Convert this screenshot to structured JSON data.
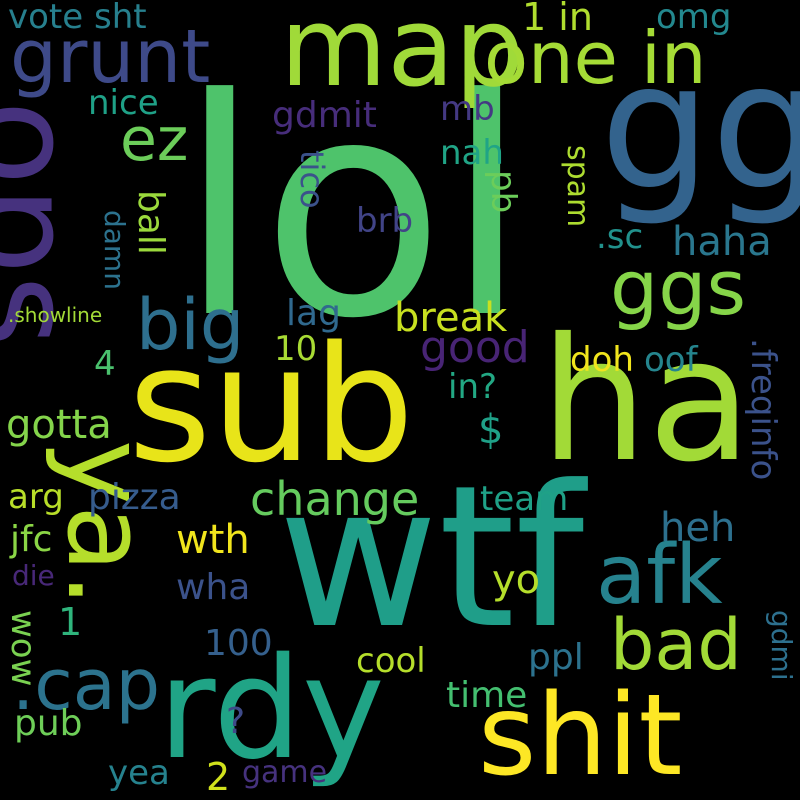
{
  "words": [
    {
      "text": "lol",
      "color": "#4ec36b"
    },
    {
      "text": "sub",
      "color": "#e8e419"
    },
    {
      "text": "ha",
      "color": "#a2da37"
    },
    {
      "text": "wtf",
      "color": "#1f9e89"
    },
    {
      "text": "gg",
      "color": "#33638d"
    },
    {
      "text": "rdy",
      "color": "#20a486"
    },
    {
      "text": "shit",
      "color": "#fde725"
    },
    {
      "text": "ops",
      "color": "#46327e"
    },
    {
      "text": "map",
      "color": "#a0da39"
    },
    {
      "text": "ya.",
      "color": "#b5de2b"
    },
    {
      "text": "grunt",
      "color": "#3e4a89"
    },
    {
      "text": "one in",
      "color": "#a5db36"
    },
    {
      "text": "ggs",
      "color": "#86d549"
    },
    {
      "text": "afk",
      "color": "#26828e"
    },
    {
      "text": "bad",
      "color": "#a2da37"
    },
    {
      "text": ".cap",
      "color": "#2c738e"
    },
    {
      "text": "big",
      "color": "#2e6f8e"
    },
    {
      "text": "ez",
      "color": "#6ccd5a"
    },
    {
      "text": "change",
      "color": "#65cb5e"
    },
    {
      "text": "good",
      "color": "#482475"
    },
    {
      "text": "break",
      "color": "#c8e020"
    },
    {
      "text": ".freqinfo",
      "color": "#3b528b"
    },
    {
      "text": "gotta",
      "color": "#84d44b"
    },
    {
      "text": "pizza",
      "color": "#365c8d"
    },
    {
      "text": "wth",
      "color": "#f1e51d"
    },
    {
      "text": "haha",
      "color": "#2a778e"
    },
    {
      "text": "yo",
      "color": "#b5de2b"
    },
    {
      "text": "heh",
      "color": "#2d708e"
    },
    {
      "text": "vote sht",
      "color": "#27808e"
    },
    {
      "text": "nice",
      "color": "#1fa187"
    },
    {
      "text": "gdmit",
      "color": "#472d7b"
    },
    {
      "text": "mb",
      "color": "#443983"
    },
    {
      "text": "nah",
      "color": "#20a486"
    },
    {
      "text": "1 in",
      "color": "#b0dd2f"
    },
    {
      "text": "omg",
      "color": "#23888e"
    },
    {
      "text": "pb",
      "color": "#6ccd5a"
    },
    {
      "text": "tico",
      "color": "#3b528b"
    },
    {
      "text": "spam",
      "color": "#addc30"
    },
    {
      "text": ".sc",
      "color": "#21918c"
    },
    {
      "text": "brb",
      "color": "#414487"
    },
    {
      "text": "damn",
      "color": "#2c728e"
    },
    {
      "text": "ball",
      "color": "#9bd93c"
    },
    {
      "text": "lag",
      "color": "#30698e"
    },
    {
      "text": "10",
      "color": "#a8db34"
    },
    {
      "text": "4",
      "color": "#4ac16d"
    },
    {
      "text": "doh",
      "color": "#f1e51d"
    },
    {
      "text": "oof",
      "color": "#25858e"
    },
    {
      "text": "in?",
      "color": "#22a884"
    },
    {
      "text": "$",
      "color": "#1fa188"
    },
    {
      "text": "arg",
      "color": "#b8de29"
    },
    {
      "text": "team",
      "color": "#1fa187"
    },
    {
      "text": "jfc",
      "color": "#8bd646"
    },
    {
      "text": "die",
      "color": "#482878"
    },
    {
      "text": "wow",
      "color": "#7ad151"
    },
    {
      "text": "wha",
      "color": "#3b528b"
    },
    {
      "text": "1",
      "color": "#2fb47c"
    },
    {
      "text": "100",
      "color": "#35608d"
    },
    {
      "text": "cool",
      "color": "#b5de2b"
    },
    {
      "text": "ppl",
      "color": "#2c728e"
    },
    {
      "text": "gdmi",
      "color": "#2d708e"
    },
    {
      "text": "time",
      "color": "#44bf70"
    },
    {
      "text": "?",
      "color": "#3e4a89"
    },
    {
      "text": "pub",
      "color": "#6ece58"
    },
    {
      "text": "yea",
      "color": "#26828e"
    },
    {
      "text": "2",
      "color": "#d0e11c"
    },
    {
      "text": "game",
      "color": "#46327e"
    },
    {
      "text": ".showline",
      "color": "#a2da37"
    }
  ]
}
